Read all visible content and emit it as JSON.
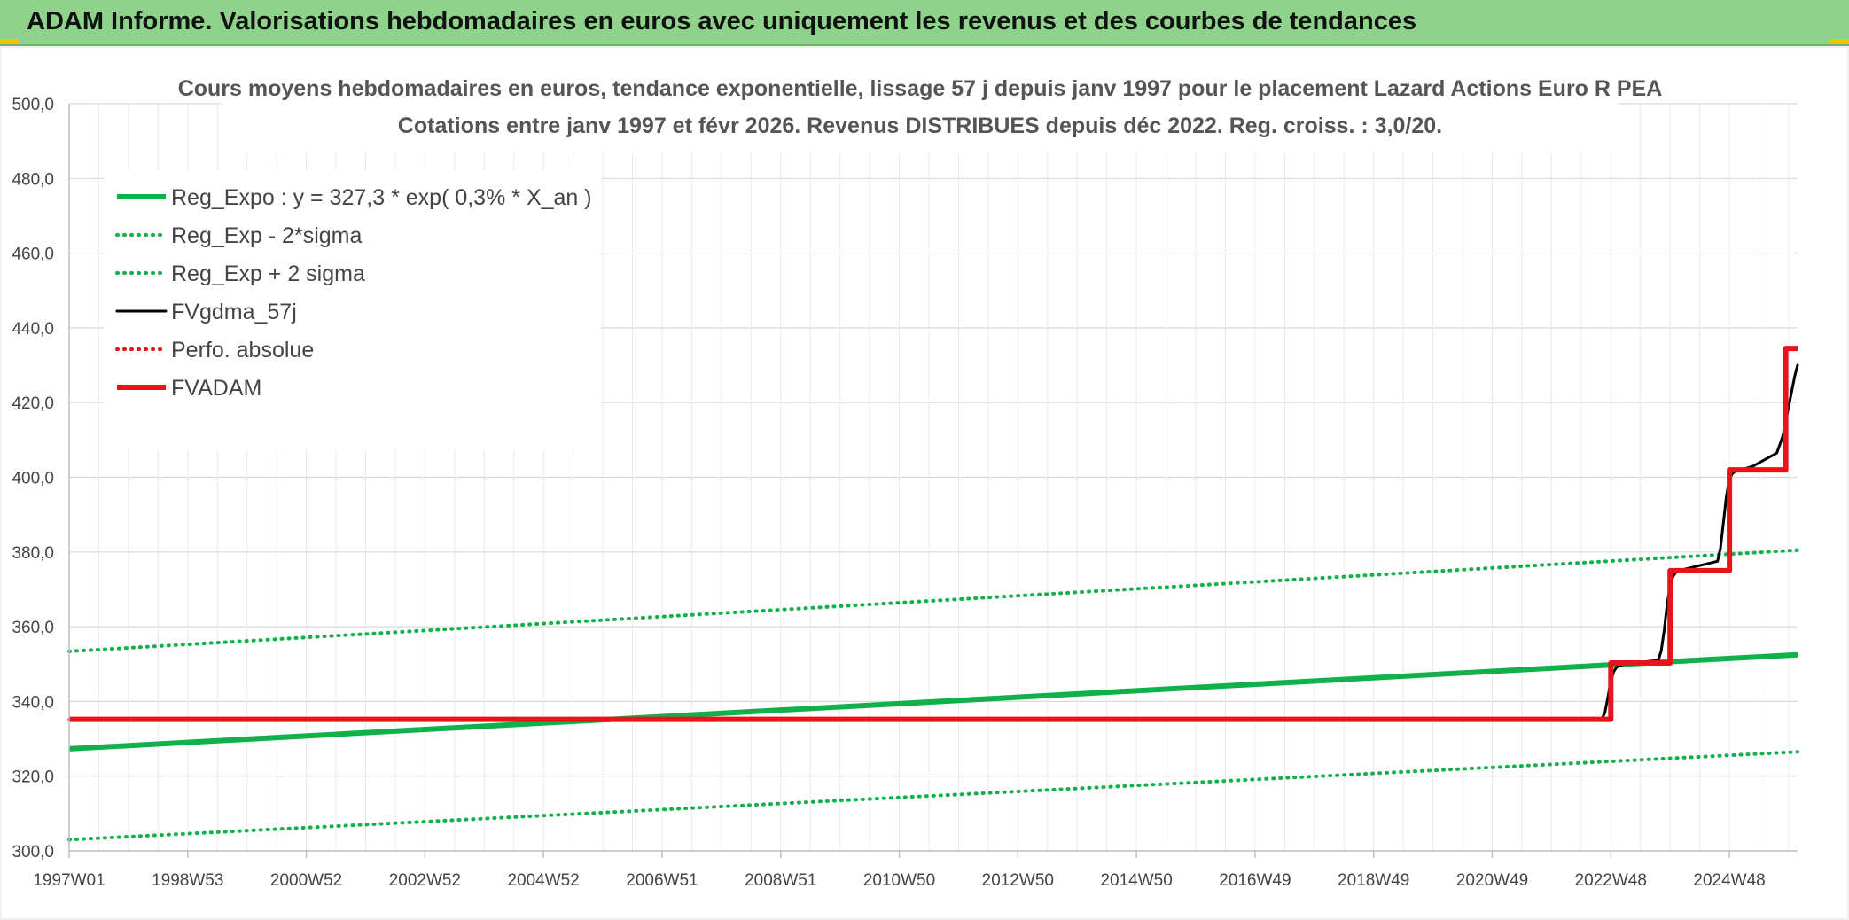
{
  "header": {
    "title": "ADAM Informe. Valorisations hebdomadaires en euros avec uniquement les revenus et des courbes de tendances"
  },
  "colors": {
    "banner": "#8fd28b",
    "green": "#10b04a",
    "black": "#000000",
    "red": "#e8141c",
    "grid": "#d9d9d9"
  },
  "chart_data": {
    "type": "line",
    "title_line1": "Cours moyens hebdomadaires en euros, tendance exponentielle, lissage 57 j depuis janv 1997 pour le placement Lazard Actions Euro R PEA",
    "title_line2": "Cotations entre janv 1997 et févr 2026. Revenus DISTRIBUES depuis déc 2022. Reg. croiss. : 3,0/20.",
    "x_range": [
      1997.0,
      2026.15
    ],
    "x_ticks": [
      {
        "label": "1997W01",
        "year": 1997.0
      },
      {
        "label": "1998W53",
        "year": 1999.0
      },
      {
        "label": "2000W52",
        "year": 2001.0
      },
      {
        "label": "2002W52",
        "year": 2003.0
      },
      {
        "label": "2004W52",
        "year": 2005.0
      },
      {
        "label": "2006W51",
        "year": 2007.0
      },
      {
        "label": "2008W51",
        "year": 2009.0
      },
      {
        "label": "2010W50",
        "year": 2011.0
      },
      {
        "label": "2012W50",
        "year": 2013.0
      },
      {
        "label": "2014W50",
        "year": 2015.0
      },
      {
        "label": "2016W49",
        "year": 2017.0
      },
      {
        "label": "2018W49",
        "year": 2019.0
      },
      {
        "label": "2020W49",
        "year": 2021.0
      },
      {
        "label": "2022W48",
        "year": 2023.0
      },
      {
        "label": "2024W48",
        "year": 2025.0
      }
    ],
    "ylim": [
      300,
      500
    ],
    "y_ticks": [
      {
        "value": 300,
        "label": "300,0"
      },
      {
        "value": 320,
        "label": "320,0"
      },
      {
        "value": 340,
        "label": "340,0"
      },
      {
        "value": 360,
        "label": "360,0"
      },
      {
        "value": 380,
        "label": "380,0"
      },
      {
        "value": 400,
        "label": "400,0"
      },
      {
        "value": 420,
        "label": "420,0"
      },
      {
        "value": 440,
        "label": "440,0"
      },
      {
        "value": 460,
        "label": "460,0"
      },
      {
        "value": 480,
        "label": "480,0"
      },
      {
        "value": 500,
        "label": "500,0"
      }
    ],
    "series": [
      {
        "name": "Reg_Expo : y = 327,3 * exp( 0,3% *  X_an )",
        "style": "solid-thick",
        "color": "#10b04a",
        "x": [
          1997.0,
          2026.15
        ],
        "y": [
          327.3,
          352.5
        ]
      },
      {
        "name": "Reg_Exp - 2*sigma",
        "style": "dotted",
        "color": "#10b04a",
        "x": [
          1997.0,
          2026.15
        ],
        "y": [
          303.0,
          326.5
        ]
      },
      {
        "name": "Reg_Exp + 2 sigma",
        "style": "dotted",
        "color": "#10b04a",
        "x": [
          1997.0,
          2026.15
        ],
        "y": [
          353.4,
          380.5
        ]
      },
      {
        "name": "FVgdma_57j",
        "style": "solid",
        "color": "#000000",
        "x": [
          1997.0,
          2022.85,
          2022.9,
          2022.95,
          2023.0,
          2023.05,
          2023.1,
          2023.2,
          2023.4,
          2023.8,
          2023.85,
          2023.9,
          2023.95,
          2024.0,
          2024.05,
          2024.1,
          2024.2,
          2024.4,
          2024.8,
          2024.85,
          2024.9,
          2024.95,
          2025.0,
          2025.05,
          2025.1,
          2025.2,
          2025.4,
          2025.8,
          2025.9,
          2026.0,
          2026.1,
          2026.15
        ],
        "y": [
          335.2,
          335.3,
          337.0,
          341.0,
          345.5,
          348.0,
          349.2,
          349.9,
          350.3,
          351.0,
          353.5,
          359.0,
          366.0,
          371.0,
          373.5,
          374.6,
          375.2,
          376.0,
          377.5,
          381.0,
          388.0,
          395.0,
          399.5,
          401.0,
          401.6,
          402.0,
          403.0,
          406.5,
          411.0,
          419.0,
          427.0,
          430.0
        ]
      },
      {
        "name": "Perfo. absolue",
        "style": "dotted",
        "color": "#e8141c",
        "x": [],
        "y": []
      },
      {
        "name": "FVADAM",
        "style": "step-thick",
        "color": "#e8141c",
        "x": [
          1997.0,
          2023.0,
          2023.0,
          2024.0,
          2024.0,
          2025.0,
          2025.0,
          2025.95,
          2025.95,
          2026.15
        ],
        "y": [
          335.2,
          335.2,
          350.3,
          350.3,
          375.0,
          375.0,
          402.0,
          402.0,
          434.5,
          434.5
        ]
      }
    ]
  }
}
